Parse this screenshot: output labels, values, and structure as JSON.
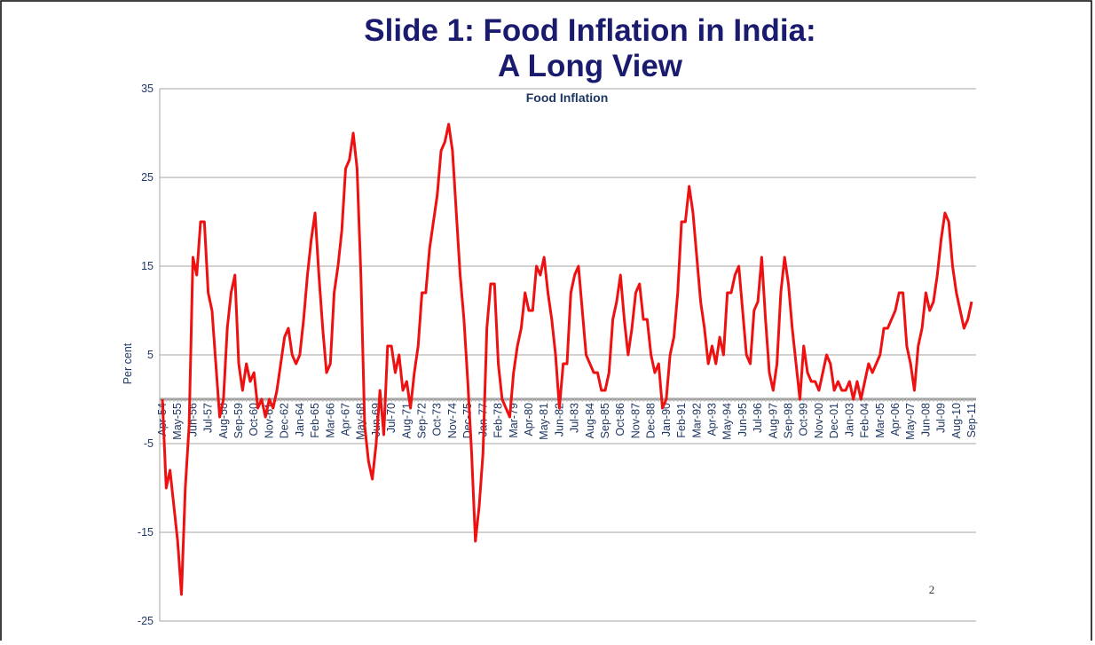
{
  "chart_data": {
    "type": "line",
    "title": "Slide 1: Food Inflation in India:",
    "title_line2": "A Long View",
    "subtitle": "Food Inflation",
    "y_label": "Per cent",
    "page_number": "2",
    "color": "#ee1111",
    "ylim": [
      -25,
      35
    ],
    "yticks": [
      -25,
      -15,
      -5,
      5,
      15,
      25,
      35
    ],
    "grid": true,
    "categories": [
      "Apr-54",
      null,
      null,
      null,
      "May-55",
      null,
      null,
      null,
      "Jun-56",
      null,
      null,
      null,
      "Jul-57",
      null,
      null,
      null,
      "Aug-58",
      null,
      null,
      null,
      "Sep-59",
      null,
      null,
      null,
      "Oct-60",
      null,
      null,
      null,
      "Nov-61",
      null,
      null,
      null,
      "Dec-62",
      null,
      null,
      null,
      "Jan-64",
      null,
      null,
      null,
      "Feb-65",
      null,
      null,
      null,
      "Mar-66",
      null,
      null,
      null,
      "Apr-67",
      null,
      null,
      null,
      "May-68",
      null,
      null,
      null,
      "Jun-69",
      null,
      null,
      null,
      "Jul-70",
      null,
      null,
      null,
      "Aug-71",
      null,
      null,
      null,
      "Sep-72",
      null,
      null,
      null,
      "Oct-73",
      null,
      null,
      null,
      "Nov-74",
      null,
      null,
      null,
      "Dec-75",
      null,
      null,
      null,
      "Jan-77",
      null,
      null,
      null,
      "Feb-78",
      null,
      null,
      null,
      "Mar-79",
      null,
      null,
      null,
      "Apr-80",
      null,
      null,
      null,
      "May-81",
      null,
      null,
      null,
      "Jun-82",
      null,
      null,
      null,
      "Jul-83",
      null,
      null,
      null,
      "Aug-84",
      null,
      null,
      null,
      "Sep-85",
      null,
      null,
      null,
      "Oct-86",
      null,
      null,
      null,
      "Nov-87",
      null,
      null,
      null,
      "Dec-88",
      null,
      null,
      null,
      "Jan-90",
      null,
      null,
      null,
      "Feb-91",
      null,
      null,
      null,
      "Mar-92",
      null,
      null,
      null,
      "Apr-93",
      null,
      null,
      null,
      "May-94",
      null,
      null,
      null,
      "Jun-95",
      null,
      null,
      null,
      "Jul-96",
      null,
      null,
      null,
      "Aug-97",
      null,
      null,
      null,
      "Sep-98",
      null,
      null,
      null,
      "Oct-99",
      null,
      null,
      null,
      "Nov-00",
      null,
      null,
      null,
      "Dec-01",
      null,
      null,
      null,
      "Jan-03",
      null,
      null,
      null,
      "Feb-04",
      null,
      null,
      null,
      "Mar-05",
      null,
      null,
      null,
      "Apr-06",
      null,
      null,
      null,
      "May-07",
      null,
      null,
      null,
      "Jun-08",
      null,
      null,
      null,
      "Jul-09",
      null,
      null,
      null,
      "Aug-10",
      null,
      null,
      null,
      "Sep-11"
    ],
    "values": [
      0,
      -10,
      -8,
      -12,
      -16,
      -22,
      -10,
      -3,
      16,
      14,
      20,
      20,
      12,
      10,
      4,
      -2,
      0,
      8,
      12,
      14,
      4,
      1,
      4,
      2,
      3,
      -1,
      0,
      -2,
      0,
      -1,
      1,
      4,
      7,
      8,
      5,
      4,
      5,
      9,
      14,
      18,
      21,
      14,
      8,
      3,
      4,
      12,
      15,
      19,
      26,
      27,
      30,
      26,
      14,
      -3,
      -7,
      -9,
      -5,
      1,
      -4,
      6,
      6,
      3,
      5,
      1,
      2,
      -1,
      3,
      6,
      12,
      12,
      17,
      20,
      23,
      28,
      29,
      31,
      28,
      21,
      14,
      9,
      2,
      -6,
      -16,
      -12,
      -6,
      8,
      13,
      13,
      4,
      0,
      -1,
      -2,
      3,
      6,
      8,
      12,
      10,
      10,
      15,
      14,
      16,
      12,
      9,
      5,
      -1,
      4,
      4,
      12,
      14,
      15,
      10,
      5,
      4,
      3,
      3,
      1,
      1,
      3,
      9,
      11,
      14,
      9,
      5,
      8,
      12,
      13,
      9,
      9,
      5,
      3,
      4,
      -1,
      0,
      5,
      7,
      12,
      20,
      20,
      24,
      21,
      16,
      11,
      8,
      4,
      6,
      4,
      7,
      5,
      12,
      12,
      14,
      15,
      10,
      5,
      4,
      10,
      11,
      16,
      9,
      3,
      1,
      4,
      12,
      16,
      13,
      8,
      4,
      0,
      6,
      3,
      2,
      2,
      1,
      3,
      5,
      4,
      1,
      2,
      1,
      1,
      2,
      0,
      2,
      0,
      2,
      4,
      3,
      4,
      5,
      8,
      8,
      9,
      10,
      12,
      12,
      6,
      4,
      1,
      6,
      8,
      12,
      10,
      11,
      14,
      18,
      21,
      20,
      15,
      12,
      10,
      8,
      9,
      11
    ]
  }
}
